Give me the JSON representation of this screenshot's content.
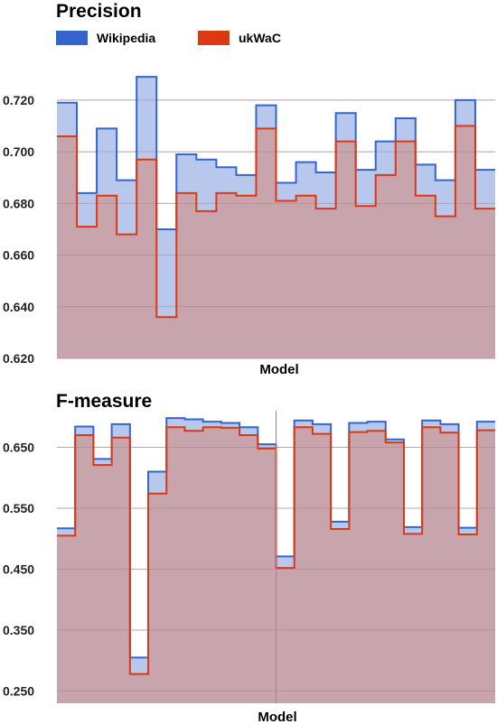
{
  "legend": {
    "series": [
      {
        "name": "Wikipedia",
        "color": "#3366cc"
      },
      {
        "name": "ukWaC",
        "color": "#dc3912"
      }
    ]
  },
  "chart_data": [
    {
      "type": "area",
      "subtype": "stepped",
      "title": "Precision",
      "xlabel": "Model",
      "ylabel": "",
      "ylim": [
        0.62,
        0.735
      ],
      "yticks": [
        "0.620",
        "0.640",
        "0.660",
        "0.680",
        "0.700",
        "0.720"
      ],
      "series": [
        {
          "name": "Wikipedia",
          "values": [
            0.719,
            0.684,
            0.709,
            0.689,
            0.729,
            0.67,
            0.699,
            0.697,
            0.694,
            0.691,
            0.718,
            0.688,
            0.696,
            0.692,
            0.715,
            0.693,
            0.704,
            0.713,
            0.695,
            0.689,
            0.72,
            0.693
          ]
        },
        {
          "name": "ukWaC",
          "values": [
            0.706,
            0.671,
            0.683,
            0.668,
            0.697,
            0.636,
            0.684,
            0.677,
            0.684,
            0.683,
            0.709,
            0.681,
            0.683,
            0.678,
            0.704,
            0.679,
            0.691,
            0.704,
            0.683,
            0.675,
            0.71,
            0.678
          ]
        }
      ]
    },
    {
      "type": "area",
      "subtype": "stepped",
      "title": "F-measure",
      "xlabel": "Model",
      "ylabel": "",
      "ylim": [
        0.23,
        0.71
      ],
      "yticks": [
        "0.250",
        "0.350",
        "0.450",
        "0.550",
        "0.650"
      ],
      "series": [
        {
          "name": "Wikipedia",
          "values": [
            0.517,
            0.684,
            0.631,
            0.688,
            0.305,
            0.61,
            0.698,
            0.696,
            0.692,
            0.69,
            0.683,
            0.655,
            0.471,
            0.694,
            0.688,
            0.528,
            0.69,
            0.692,
            0.663,
            0.519,
            0.694,
            0.688,
            0.518,
            0.692
          ]
        },
        {
          "name": "ukWaC",
          "values": [
            0.505,
            0.67,
            0.621,
            0.666,
            0.278,
            0.574,
            0.683,
            0.677,
            0.683,
            0.682,
            0.67,
            0.648,
            0.452,
            0.683,
            0.672,
            0.516,
            0.675,
            0.677,
            0.658,
            0.508,
            0.683,
            0.674,
            0.507,
            0.678
          ]
        }
      ]
    }
  ]
}
